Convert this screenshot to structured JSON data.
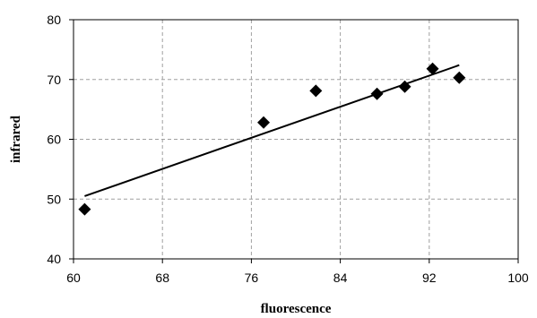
{
  "chart_data": {
    "type": "scatter",
    "title": "",
    "xlabel": "fluorescence",
    "ylabel": "infrared",
    "xlim": [
      60,
      100
    ],
    "ylim": [
      40,
      80
    ],
    "xticks": [
      60,
      68,
      76,
      84,
      92,
      100
    ],
    "yticks": [
      40,
      50,
      60,
      70,
      80
    ],
    "grid": true,
    "marker": "diamond",
    "points": [
      {
        "x": 61.0,
        "y": 48.3
      },
      {
        "x": 77.1,
        "y": 62.8
      },
      {
        "x": 81.8,
        "y": 68.1
      },
      {
        "x": 87.3,
        "y": 67.6
      },
      {
        "x": 89.8,
        "y": 68.8
      },
      {
        "x": 92.3,
        "y": 71.8
      },
      {
        "x": 94.7,
        "y": 70.3
      }
    ],
    "trendline": {
      "type": "linear",
      "x": [
        61.0,
        94.7
      ],
      "y": [
        50.5,
        72.4
      ]
    }
  }
}
